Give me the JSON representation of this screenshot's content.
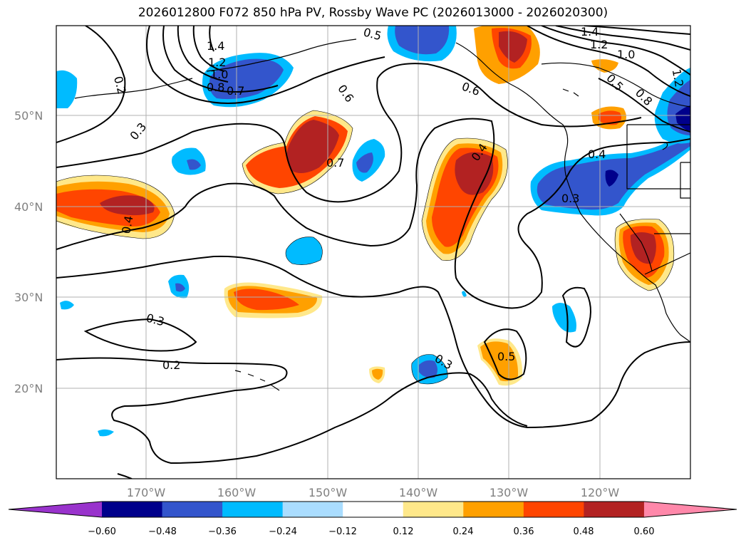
{
  "title": "2026012800 F072 850 hPa PV, Rossby Wave PC (2026013000 - 2026020300)",
  "lat_labels": [
    "50°N",
    "40°N",
    "30°N",
    "20°N"
  ],
  "lon_labels": [
    "170°W",
    "160°W",
    "150°W",
    "140°W",
    "130°W",
    "120°W"
  ],
  "colorbar": {
    "ticks": [
      "−0.60",
      "−0.48",
      "−0.36",
      "−0.24",
      "−0.12",
      "0.12",
      "0.24",
      "0.36",
      "0.48",
      "0.60"
    ],
    "colors": [
      "#9933cc",
      "#00008b",
      "#3355cc",
      "#00bbff",
      "#aaddff",
      "#ffffff",
      "#ffe88a",
      "#ffa000",
      "#ff4500",
      "#b22222",
      "#ff88aa"
    ]
  },
  "contour_labels": [
    "1.4",
    "1.2",
    "1.0",
    "0.8",
    "0.7",
    "0.2",
    "0.3",
    "0.5",
    "0.6",
    "0.6",
    "0.7",
    "0.4",
    "0.3",
    "0.4",
    "0.3",
    "0.2",
    "0.3",
    "0.5",
    "1.4",
    "1.2",
    "1.0",
    "0.5",
    "0.8",
    "1.2",
    "0.4"
  ]
}
